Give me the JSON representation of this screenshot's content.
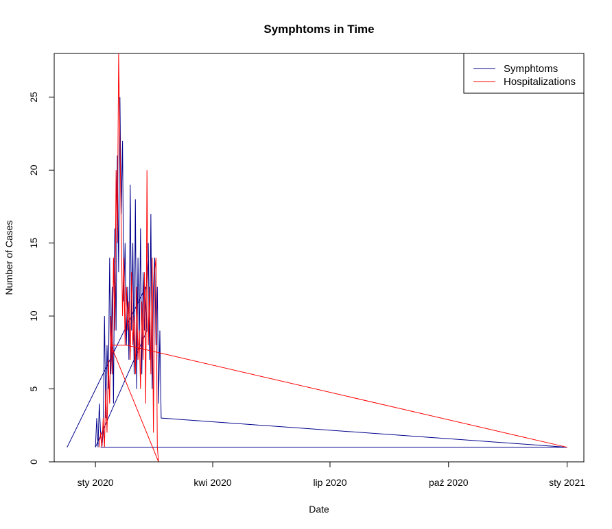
{
  "chart_data": {
    "type": "line",
    "title": "Symphtoms in Time",
    "xlabel": "Date",
    "ylabel": "Number of Cases",
    "x_ticks": [
      {
        "date": "2020-01-01",
        "label": "sty 2020"
      },
      {
        "date": "2020-04-01",
        "label": "kwi 2020"
      },
      {
        "date": "2020-07-01",
        "label": "lip 2020"
      },
      {
        "date": "2020-10-01",
        "label": "paź 2020"
      },
      {
        "date": "2021-01-01",
        "label": "sty 2021"
      }
    ],
    "y_ticks": [
      0,
      5,
      10,
      15,
      20,
      25
    ],
    "xlim": [
      "2019-11-30",
      "2021-01-14"
    ],
    "ylim": [
      0,
      28
    ],
    "grid": false,
    "legend_position": "top-right",
    "series": [
      {
        "name": "Symphtoms",
        "color": "#00008B",
        "points": [
          [
            "2019-12-10",
            1
          ],
          [
            "2020-02-09",
            12
          ],
          [
            "2020-02-10",
            9
          ],
          [
            "2020-01-01",
            1
          ],
          [
            "2020-01-02",
            3
          ],
          [
            "2020-01-03",
            1
          ],
          [
            "2020-01-04",
            4
          ],
          [
            "2020-01-05",
            2
          ],
          [
            "2020-01-06",
            1
          ],
          [
            "2020-01-07",
            2
          ],
          [
            "2020-01-08",
            10
          ],
          [
            "2020-01-09",
            3
          ],
          [
            "2020-01-10",
            8
          ],
          [
            "2020-01-11",
            5
          ],
          [
            "2020-01-12",
            14
          ],
          [
            "2020-01-13",
            6
          ],
          [
            "2020-01-14",
            12
          ],
          [
            "2020-01-15",
            4
          ],
          [
            "2020-01-16",
            16
          ],
          [
            "2020-01-17",
            9
          ],
          [
            "2020-01-18",
            21
          ],
          [
            "2020-01-19",
            13
          ],
          [
            "2020-01-20",
            25
          ],
          [
            "2020-01-21",
            17
          ],
          [
            "2020-01-22",
            22
          ],
          [
            "2020-01-23",
            11
          ],
          [
            "2020-01-24",
            15
          ],
          [
            "2020-01-25",
            8
          ],
          [
            "2020-01-26",
            12
          ],
          [
            "2020-01-27",
            7
          ],
          [
            "2020-01-28",
            19
          ],
          [
            "2020-01-29",
            9
          ],
          [
            "2020-01-30",
            15
          ],
          [
            "2020-01-31",
            6
          ],
          [
            "2020-02-01",
            18
          ],
          [
            "2020-02-02",
            5
          ],
          [
            "2020-02-03",
            14
          ],
          [
            "2020-02-04",
            8
          ],
          [
            "2020-02-05",
            16
          ],
          [
            "2020-02-06",
            6
          ],
          [
            "2020-02-07",
            13
          ],
          [
            "2020-02-08",
            9
          ],
          [
            "2020-02-11",
            15
          ],
          [
            "2020-02-12",
            7
          ],
          [
            "2020-02-13",
            17
          ],
          [
            "2020-02-14",
            5
          ],
          [
            "2020-02-15",
            12
          ],
          [
            "2020-02-16",
            14
          ],
          [
            "2020-02-17",
            8
          ],
          [
            "2020-02-18",
            12
          ],
          [
            "2020-02-19",
            4
          ],
          [
            "2020-02-20",
            9
          ],
          [
            "2020-02-21",
            3
          ],
          [
            "2021-01-01",
            1
          ],
          [
            "2020-01-05",
            1
          ]
        ]
      },
      {
        "name": "Hospitalizations",
        "color": "#FF0000",
        "points": [
          [
            "2020-01-04",
            1
          ],
          [
            "2020-01-05",
            2
          ],
          [
            "2020-01-06",
            1
          ],
          [
            "2020-01-07",
            3
          ],
          [
            "2020-01-08",
            1
          ],
          [
            "2020-01-09",
            5
          ],
          [
            "2020-01-10",
            2
          ],
          [
            "2020-01-11",
            7
          ],
          [
            "2020-01-12",
            4
          ],
          [
            "2020-01-13",
            10
          ],
          [
            "2020-01-14",
            6
          ],
          [
            "2020-01-15",
            14
          ],
          [
            "2020-01-16",
            9
          ],
          [
            "2020-01-17",
            20
          ],
          [
            "2020-01-18",
            15
          ],
          [
            "2020-01-19",
            28
          ],
          [
            "2020-01-20",
            22
          ],
          [
            "2020-01-21",
            16
          ],
          [
            "2020-01-22",
            10
          ],
          [
            "2020-01-23",
            14
          ],
          [
            "2020-01-24",
            8
          ],
          [
            "2020-01-25",
            12
          ],
          [
            "2020-01-26",
            9
          ],
          [
            "2020-01-27",
            11
          ],
          [
            "2020-01-28",
            7
          ],
          [
            "2020-01-29",
            13
          ],
          [
            "2020-01-30",
            8
          ],
          [
            "2020-01-31",
            10
          ],
          [
            "2020-02-01",
            6
          ],
          [
            "2020-02-02",
            12
          ],
          [
            "2020-02-03",
            7
          ],
          [
            "2020-02-04",
            9
          ],
          [
            "2020-02-05",
            5
          ],
          [
            "2020-02-06",
            11
          ],
          [
            "2020-02-07",
            7
          ],
          [
            "2020-02-08",
            13
          ],
          [
            "2020-02-09",
            4
          ],
          [
            "2020-02-10",
            20
          ],
          [
            "2020-02-11",
            8
          ],
          [
            "2020-02-12",
            12
          ],
          [
            "2020-02-13",
            6
          ],
          [
            "2020-02-14",
            14
          ],
          [
            "2020-02-15",
            2
          ],
          [
            "2020-02-16",
            13
          ],
          [
            "2020-02-17",
            14
          ],
          [
            "2020-02-18",
            1
          ],
          [
            "2020-02-19",
            0
          ],
          [
            "2020-01-13",
            8
          ],
          [
            "2020-01-25",
            8
          ],
          [
            "2021-01-01",
            1
          ]
        ]
      }
    ]
  }
}
